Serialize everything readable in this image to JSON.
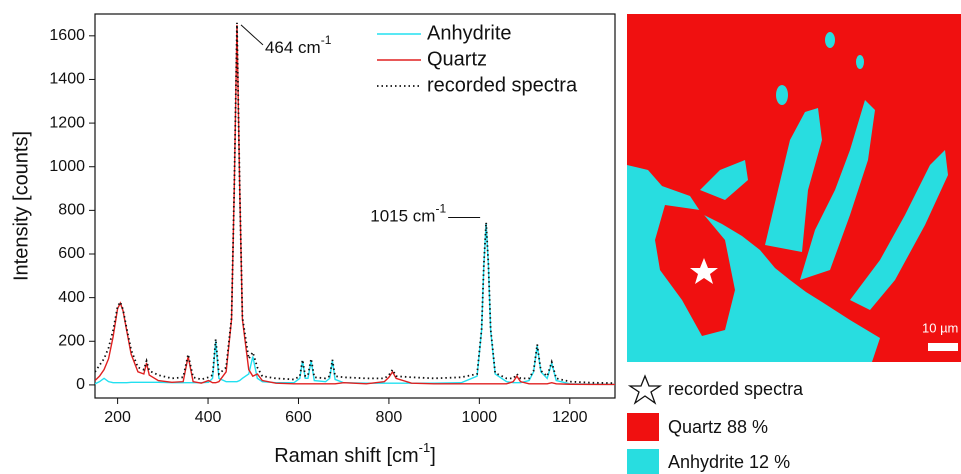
{
  "chart_data": {
    "type": "line",
    "y_label": "Intensity [counts]",
    "x_label": {
      "text": "Raman shift [cm",
      "sup": "-1",
      "end": "]"
    },
    "xlim": [
      150,
      1300
    ],
    "ylim": [
      -60,
      1700
    ],
    "xticks": [
      200,
      400,
      600,
      800,
      1000,
      1200
    ],
    "yticks": [
      0,
      200,
      400,
      600,
      800,
      1000,
      1200,
      1400,
      1600
    ],
    "legend": "upper right",
    "annotations": [
      {
        "text": "464 cm",
        "sup": "-1",
        "x": 464,
        "y": 1650
      },
      {
        "text": "1015 cm",
        "sup": "-1",
        "x": 1015,
        "y": 740
      }
    ],
    "x": [
      150,
      160,
      170,
      180,
      190,
      200,
      206,
      212,
      220,
      230,
      245,
      258,
      264,
      270,
      290,
      320,
      345,
      356,
      367,
      385,
      401,
      410,
      417,
      424,
      440,
      452,
      458,
      464,
      470,
      476,
      490,
      499,
      509,
      520,
      550,
      590,
      603,
      609,
      615,
      621,
      628,
      635,
      660,
      669,
      675,
      681,
      700,
      750,
      790,
      800,
      808,
      816,
      850,
      900,
      960,
      995,
      1005,
      1010,
      1015,
      1020,
      1025,
      1035,
      1060,
      1075,
      1083,
      1091,
      1110,
      1120,
      1128,
      1136,
      1150,
      1160,
      1170,
      1200,
      1250,
      1300
    ],
    "series": [
      {
        "name": "Anhydrite",
        "color": "#22e0f0",
        "style": "solid",
        "values": [
          5,
          15,
          30,
          15,
          10,
          10,
          10,
          10,
          10,
          12,
          12,
          12,
          12,
          12,
          12,
          10,
          10,
          10,
          10,
          10,
          12,
          30,
          200,
          30,
          15,
          15,
          15,
          15,
          20,
          30,
          50,
          130,
          30,
          15,
          10,
          10,
          30,
          110,
          30,
          30,
          110,
          20,
          15,
          30,
          110,
          25,
          10,
          8,
          8,
          8,
          8,
          8,
          8,
          8,
          10,
          40,
          250,
          550,
          740,
          550,
          250,
          50,
          15,
          10,
          10,
          10,
          20,
          60,
          180,
          60,
          30,
          100,
          20,
          5,
          3,
          2
        ]
      },
      {
        "name": "Quartz",
        "color": "#e02020",
        "style": "solid",
        "values": [
          20,
          40,
          70,
          120,
          220,
          350,
          375,
          340,
          250,
          140,
          60,
          50,
          100,
          45,
          20,
          12,
          15,
          130,
          15,
          8,
          20,
          10,
          10,
          15,
          60,
          300,
          900,
          1650,
          900,
          300,
          70,
          40,
          50,
          20,
          8,
          5,
          5,
          5,
          5,
          5,
          5,
          5,
          5,
          5,
          5,
          5,
          10,
          5,
          15,
          35,
          60,
          30,
          8,
          5,
          5,
          5,
          5,
          5,
          5,
          5,
          5,
          5,
          5,
          15,
          40,
          15,
          5,
          5,
          5,
          5,
          5,
          10,
          5,
          3,
          2,
          2
        ]
      },
      {
        "name": "recorded spectra",
        "color": "#111111",
        "style": "dotted",
        "values": [
          60,
          90,
          120,
          170,
          250,
          360,
          380,
          345,
          260,
          160,
          80,
          70,
          110,
          65,
          45,
          30,
          35,
          140,
          35,
          25,
          35,
          45,
          210,
          50,
          80,
          310,
          910,
          1660,
          910,
          310,
          120,
          150,
          80,
          40,
          30,
          25,
          40,
          115,
          40,
          45,
          120,
          35,
          30,
          40,
          115,
          40,
          35,
          30,
          30,
          45,
          70,
          40,
          35,
          30,
          35,
          50,
          255,
          555,
          745,
          555,
          255,
          55,
          30,
          30,
          50,
          30,
          30,
          65,
          185,
          65,
          40,
          105,
          30,
          15,
          10,
          8
        ]
      }
    ]
  },
  "map": {
    "scale_bar": "10 µm",
    "legend": [
      "recorded spectra",
      "Quartz 88 %",
      "Anhydrite 12 %"
    ]
  }
}
